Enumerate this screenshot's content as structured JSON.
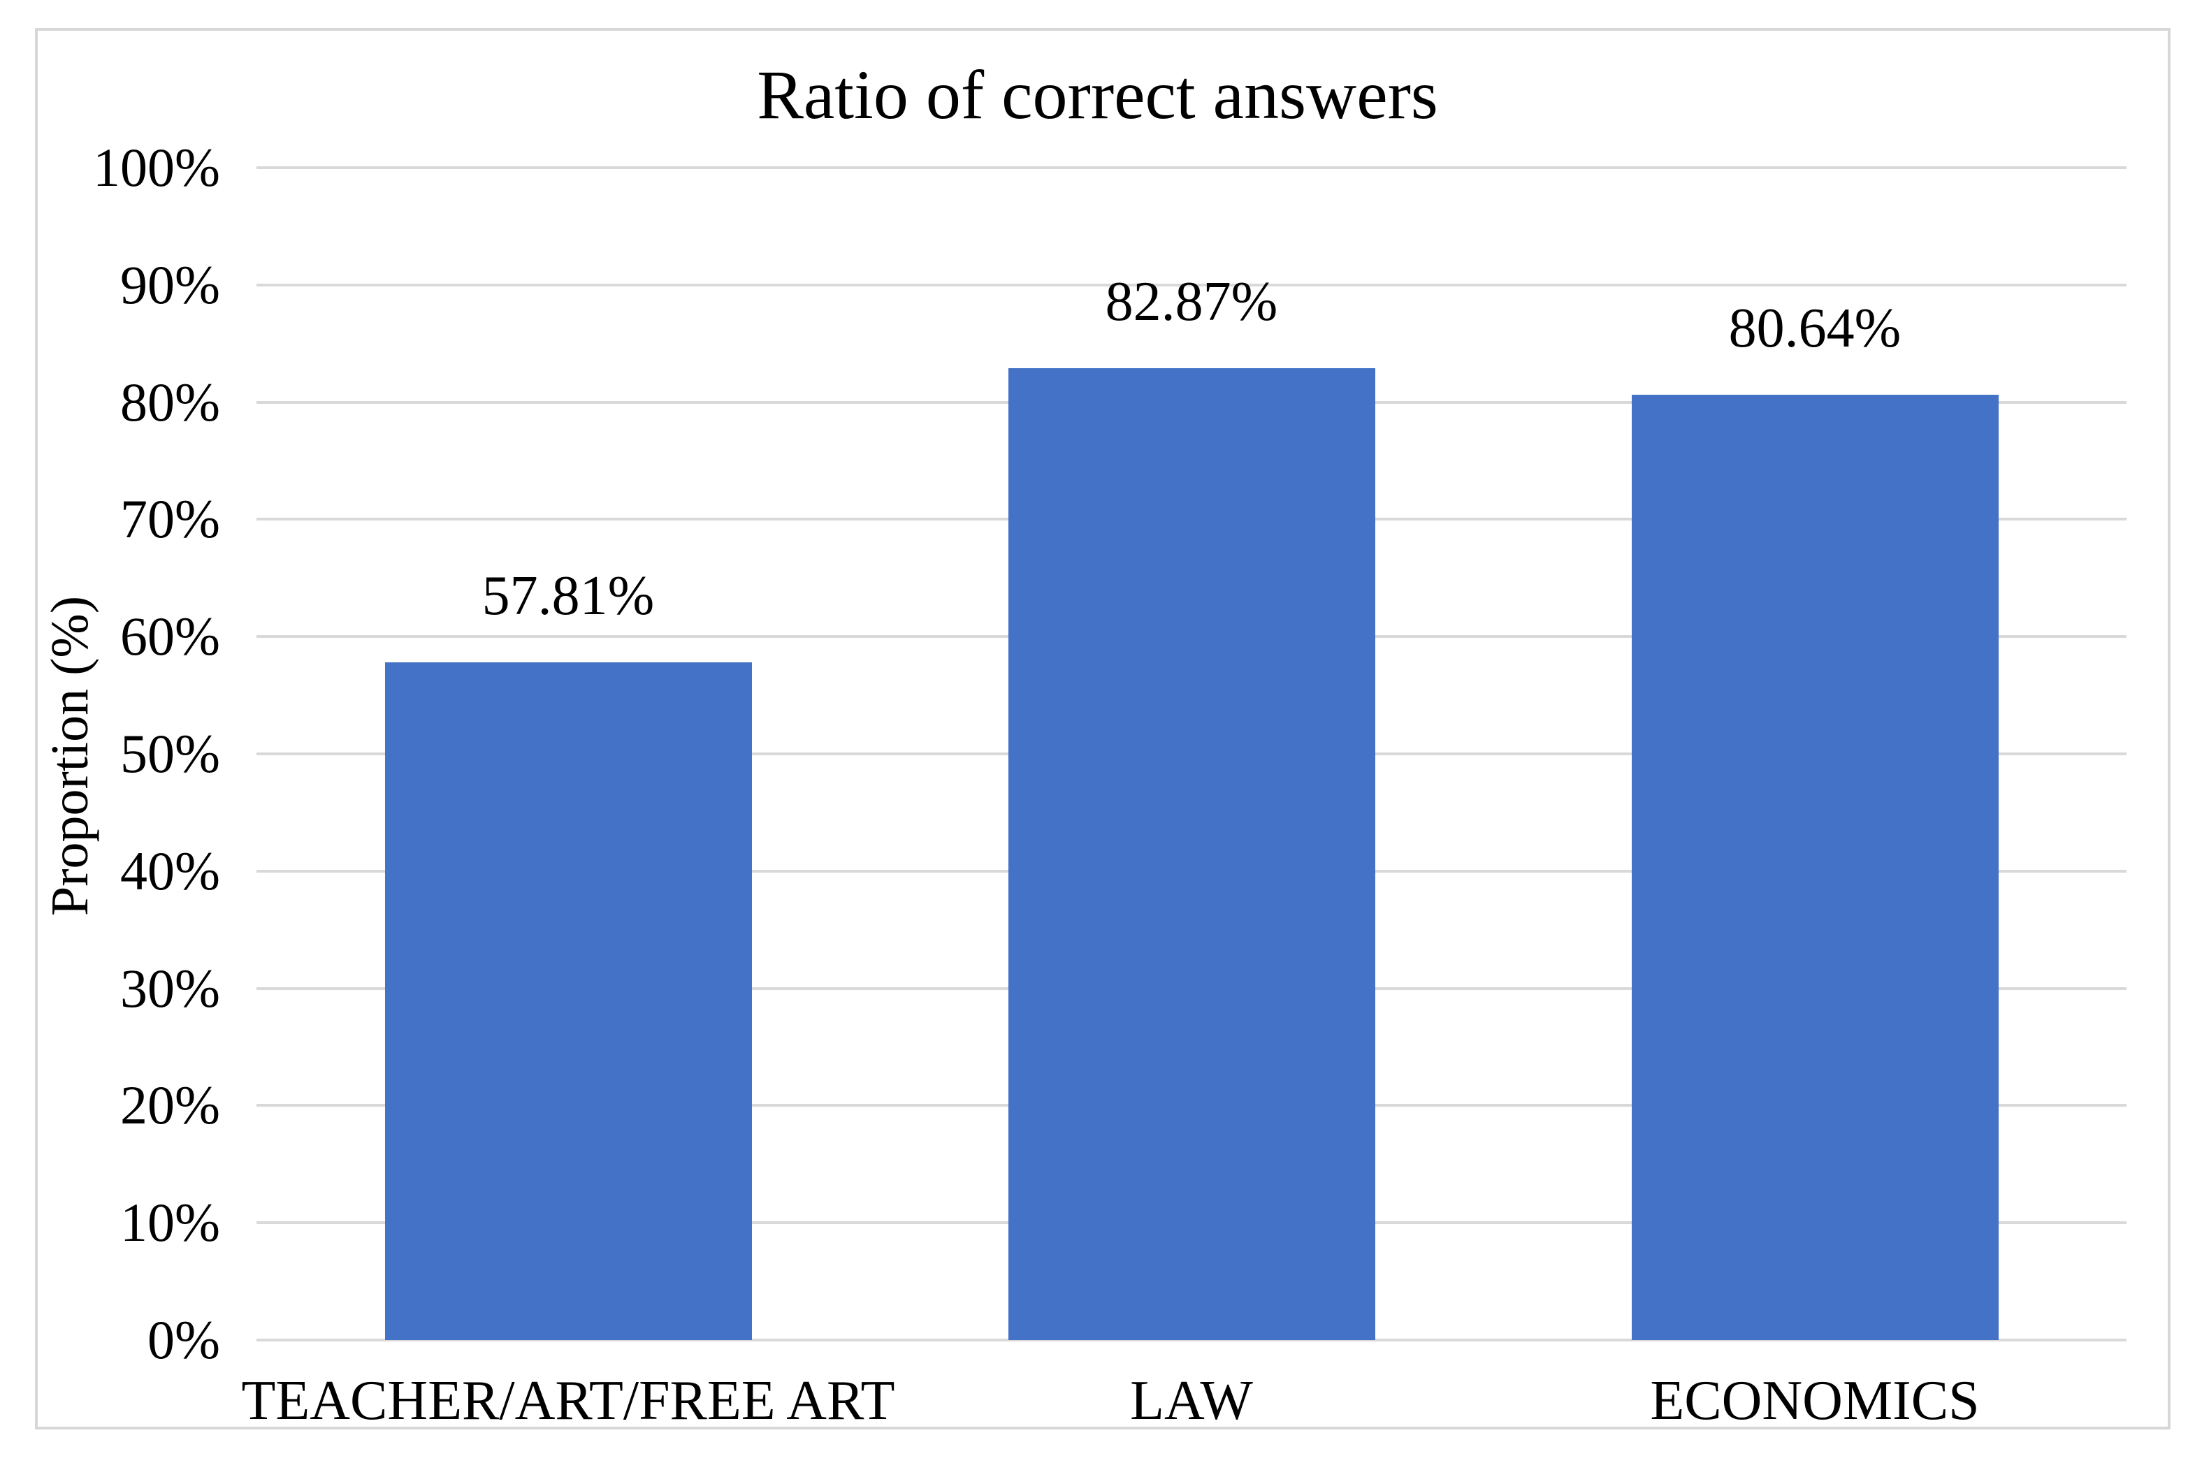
{
  "chart_data": {
    "type": "bar",
    "title": "Ratio of correct answers",
    "xlabel": "",
    "ylabel": "Proportion (%)",
    "categories": [
      "TEACHER/ART/FREE ART",
      "LAW",
      "ECONOMICS"
    ],
    "values": [
      57.81,
      82.87,
      80.64
    ],
    "data_labels": [
      "57.81%",
      "82.87%",
      "80.64%"
    ],
    "y_ticks": [
      "100%",
      "90%",
      "80%",
      "70%",
      "60%",
      "50%",
      "40%",
      "30%",
      "20%",
      "10%",
      "0%"
    ],
    "ylim": [
      0,
      100
    ],
    "y_tick_step": 10,
    "grid": true,
    "legend_position": "none",
    "bar_color": "#4472C6",
    "gridline_color": "#D9D9D9",
    "frame_border_color": "#D7D7D7",
    "text_color": "#000000",
    "background_color": "#FFFFFF"
  }
}
